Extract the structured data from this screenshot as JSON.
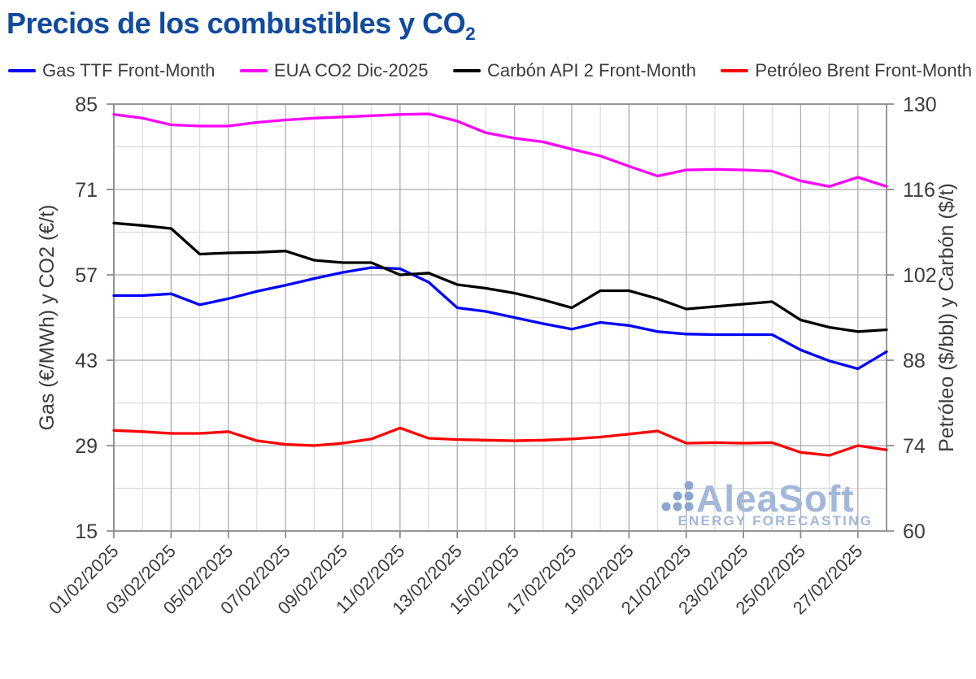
{
  "title": {
    "main": "Precios de los combustibles y CO",
    "subscript": "2"
  },
  "colors": {
    "title": "#114a9e",
    "axis_text": "#3c3c3c",
    "grid_minor": "#dadada",
    "grid_major": "#ababab",
    "frame": "#8c8c8c",
    "background": "#ffffff",
    "watermark_text": "#a3b7d9",
    "watermark_dots": "#8ba6ce"
  },
  "watermark": {
    "brand": "AleaSoft",
    "tagline": "ENERGY FORECASTING"
  },
  "chart_data": {
    "type": "line",
    "title": "Precios de los combustibles y CO2",
    "grid": true,
    "legend_position": "top",
    "x": [
      "01/02/2025",
      "02/02/2025",
      "03/02/2025",
      "04/02/2025",
      "05/02/2025",
      "06/02/2025",
      "07/02/2025",
      "08/02/2025",
      "09/02/2025",
      "10/02/2025",
      "11/02/2025",
      "12/02/2025",
      "13/02/2025",
      "14/02/2025",
      "15/02/2025",
      "16/02/2025",
      "17/02/2025",
      "18/02/2025",
      "19/02/2025",
      "20/02/2025",
      "21/02/2025",
      "22/02/2025",
      "23/02/2025",
      "24/02/2025",
      "25/02/2025",
      "26/02/2025",
      "27/02/2025",
      "28/02/2025"
    ],
    "x_tick_labels": [
      "01/02/2025",
      "03/02/2025",
      "05/02/2025",
      "07/02/2025",
      "09/02/2025",
      "11/02/2025",
      "13/02/2025",
      "15/02/2025",
      "17/02/2025",
      "19/02/2025",
      "21/02/2025",
      "23/02/2025",
      "25/02/2025",
      "27/02/2025"
    ],
    "left_axis": {
      "label": "Gas (€/MWh) y CO2 (€/t)",
      "ticks": [
        15,
        29,
        43,
        57,
        71,
        85
      ],
      "range": [
        15,
        85
      ]
    },
    "right_axis": {
      "label": "Petróleo ($/bbl) y Carbón ($/t)",
      "ticks": [
        60,
        74,
        88,
        102,
        116,
        130
      ],
      "range": [
        60,
        130
      ]
    },
    "series": [
      {
        "name": "Gas TTF Front-Month",
        "axis": "left",
        "unit": "€/MWh",
        "color": "#0000ff",
        "values": [
          53.6,
          53.6,
          53.9,
          52.1,
          53.1,
          54.3,
          55.3,
          56.4,
          57.4,
          58.2,
          58.0,
          55.8,
          51.6,
          51.0,
          50.0,
          49.0,
          48.1,
          49.2,
          48.7,
          47.7,
          47.3,
          47.2,
          47.2,
          47.2,
          44.7,
          42.9,
          41.6,
          44.4
        ]
      },
      {
        "name": "EUA CO2 Dic-2025",
        "axis": "left",
        "unit": "€/t",
        "color": "#ff00ff",
        "values": [
          83.3,
          82.7,
          81.6,
          81.4,
          81.4,
          82.0,
          82.4,
          82.7,
          82.9,
          83.1,
          83.3,
          83.4,
          82.2,
          80.3,
          79.4,
          78.8,
          77.6,
          76.5,
          74.8,
          73.2,
          74.2,
          74.3,
          74.2,
          74.0,
          72.4,
          71.5,
          73.0,
          71.5
        ]
      },
      {
        "name": "Carbón API 2 Front-Month",
        "axis": "right",
        "unit": "$/t",
        "color": "#000000",
        "values": [
          110.5,
          110.1,
          109.6,
          105.4,
          105.6,
          105.7,
          105.9,
          104.4,
          104.0,
          104.0,
          102.0,
          102.3,
          100.4,
          99.8,
          99.0,
          97.9,
          96.6,
          99.4,
          99.4,
          98.1,
          96.4,
          96.8,
          97.2,
          97.6,
          94.6,
          93.4,
          92.7,
          93.0
        ]
      },
      {
        "name": "Petróleo Brent Front-Month",
        "axis": "right",
        "unit": "$/bbl",
        "color": "#ff0000",
        "values": [
          76.5,
          76.3,
          76.0,
          76.0,
          76.3,
          74.8,
          74.2,
          74.0,
          74.4,
          75.1,
          76.9,
          75.2,
          75.0,
          74.9,
          74.8,
          74.9,
          75.1,
          75.4,
          75.9,
          76.4,
          74.4,
          74.5,
          74.4,
          74.5,
          72.9,
          72.4,
          74.0,
          73.3
        ]
      }
    ]
  }
}
